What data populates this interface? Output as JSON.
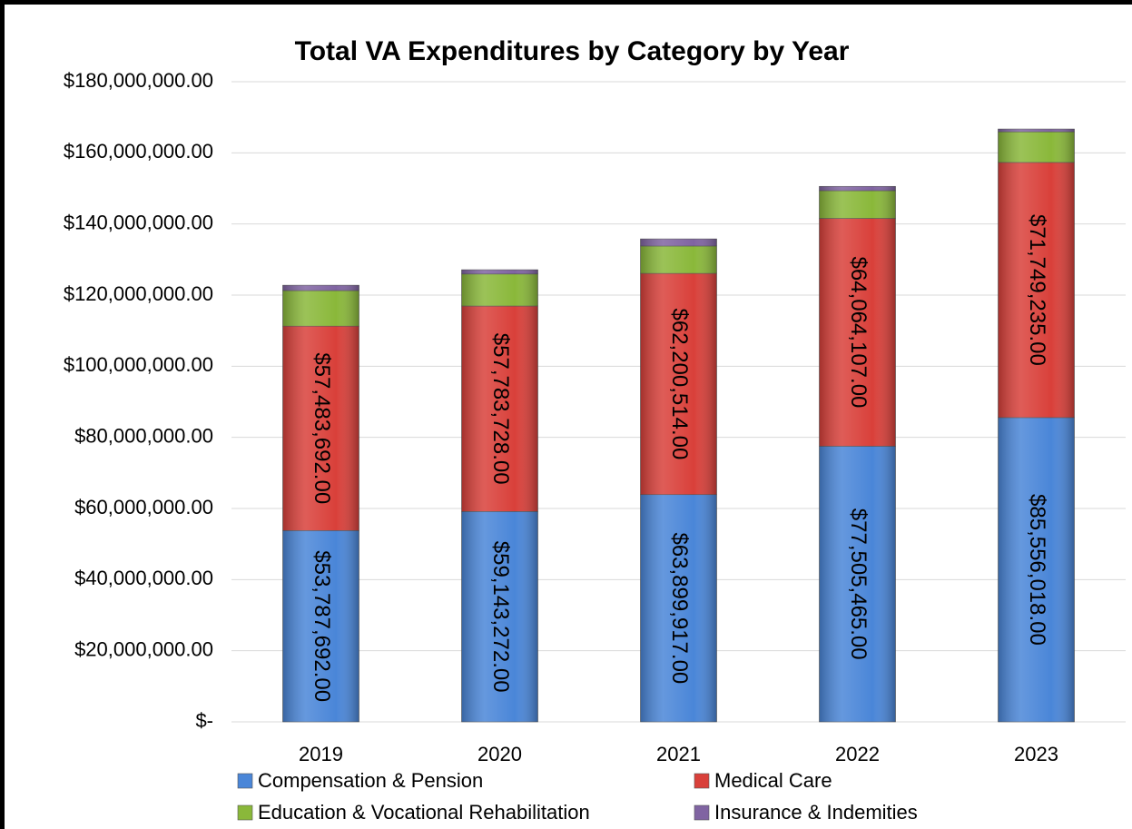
{
  "chart_data": {
    "type": "stacked_bar",
    "title": "Total VA Expenditures by Category by Year",
    "categories": [
      "2019",
      "2020",
      "2021",
      "2022",
      "2023"
    ],
    "series": [
      {
        "name": "Compensation & Pension",
        "color": "#4a86d8",
        "values": [
          53787692,
          59143272,
          63899917,
          77505465,
          85556018
        ],
        "value_labels": [
          "$53,787,692.00",
          "$59,143,272.00",
          "$63,899,917.00",
          "$77,505,465.00",
          "$85,556,018.00"
        ]
      },
      {
        "name": "Medical Care",
        "color": "#d9403a",
        "values": [
          57483692,
          57783728,
          62200514,
          64064107,
          71749235
        ],
        "value_labels": [
          "$57,483,692.00",
          "$57,783,728.00",
          "$62,200,514.00",
          "$64,064,107.00",
          "$71,749,235.00"
        ]
      },
      {
        "name": "Education & Vocational Rehabilitation",
        "color": "#8ab83a",
        "values": [
          10000000,
          9000000,
          7700000,
          7800000,
          8600000
        ]
      },
      {
        "name": "Insurance & Indemities",
        "color": "#8064a2",
        "values": [
          1500000,
          1200000,
          2000000,
          1200000,
          800000
        ]
      }
    ],
    "ylim": [
      0,
      180000000
    ],
    "yticks": [
      {
        "value": 0,
        "label": "$-"
      },
      {
        "value": 20000000,
        "label": "$20,000,000.00"
      },
      {
        "value": 40000000,
        "label": "$40,000,000.00"
      },
      {
        "value": 60000000,
        "label": "$60,000,000.00"
      },
      {
        "value": 80000000,
        "label": "$80,000,000.00"
      },
      {
        "value": 100000000,
        "label": "$100,000,000.00"
      },
      {
        "value": 120000000,
        "label": "$120,000,000.00"
      },
      {
        "value": 140000000,
        "label": "$140,000,000.00"
      },
      {
        "value": 160000000,
        "label": "$160,000,000.00"
      },
      {
        "value": 180000000,
        "label": "$180,000,000.00"
      }
    ],
    "grid": true
  }
}
